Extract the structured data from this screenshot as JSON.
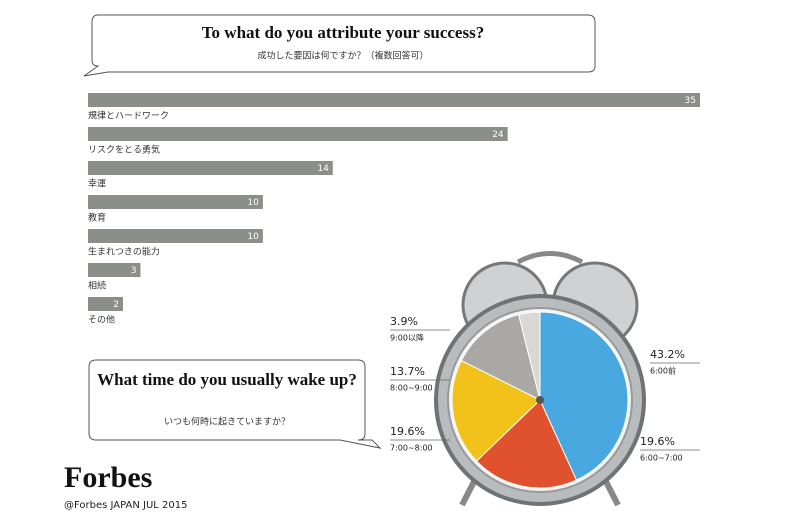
{
  "chart_data": [
    {
      "type": "bar",
      "title": "To what do you attribute your success?",
      "subtitle": "成功した要因は何ですか？（複数回答可）",
      "categories": [
        "規律とハードワーク",
        "リスクをとる勇気",
        "幸運",
        "教育",
        "生まれつきの能力",
        "相続",
        "その他"
      ],
      "values": [
        35,
        24,
        14,
        10,
        10,
        3,
        2
      ],
      "color": "#8c8e8a",
      "xlim": [
        0,
        35
      ]
    },
    {
      "type": "pie",
      "title": "What time do you usually wake up?",
      "subtitle": "いつも何時に起きていますか？",
      "categories": [
        "6:00前",
        "6:00~7:00",
        "7:00~8:00",
        "8:00~9:00",
        "9:00以降"
      ],
      "values": [
        43.2,
        19.6,
        19.6,
        13.7,
        3.9
      ],
      "value_labels": [
        "43.2%",
        "19.6%",
        "19.6%",
        "13.7%",
        "3.9%"
      ],
      "colors": [
        "#4aa8e0",
        "#e0522e",
        "#f2c21b",
        "#a9a8a4",
        "#d9d8d4"
      ]
    }
  ],
  "footer": {
    "logo": "Forbes",
    "credit": "@Forbes JAPAN JUL 2015"
  }
}
